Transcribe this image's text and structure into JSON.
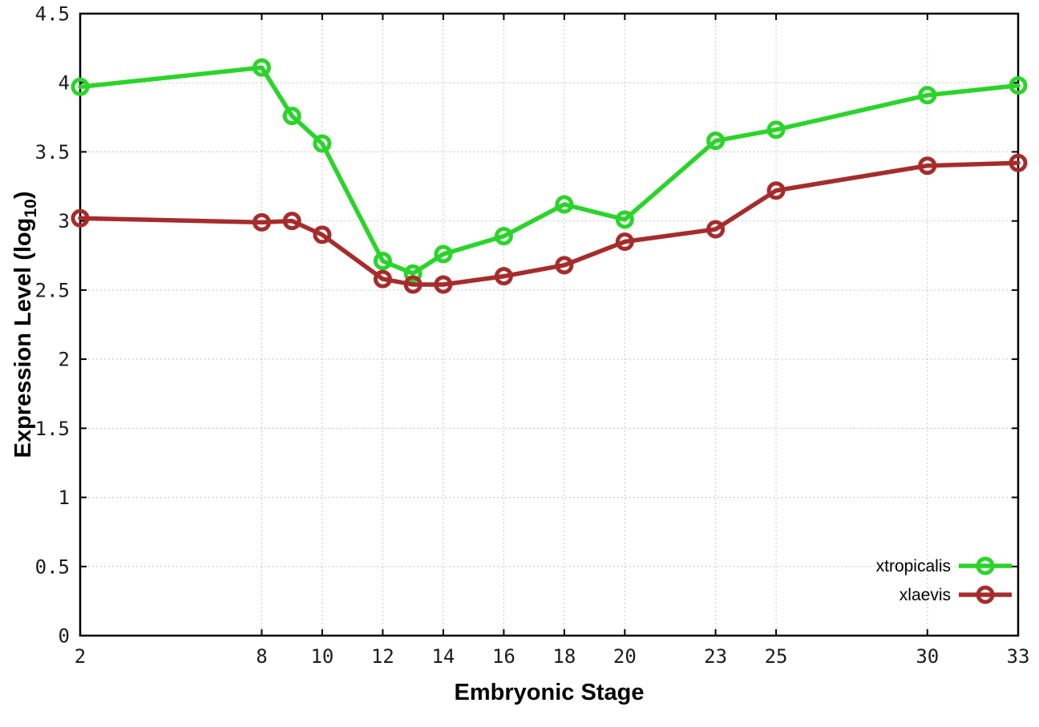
{
  "page": {
    "background": "#ffffff"
  },
  "chart_data": {
    "type": "line",
    "title": "",
    "xlabel": "Embryonic Stage",
    "ylabel": "Expression Level (log10)",
    "ylabel_parts": {
      "main": "Expression Level (log",
      "subscript": "10",
      "suffix": ")"
    },
    "xlim": [
      2,
      33
    ],
    "ylim": [
      0,
      4.5
    ],
    "xticks": [
      2,
      8,
      10,
      12,
      14,
      16,
      18,
      20,
      23,
      25,
      30,
      33
    ],
    "yticks": [
      0,
      0.5,
      1,
      1.5,
      2,
      2.5,
      3,
      3.5,
      4,
      4.5
    ],
    "grid": true,
    "legend_position": "inside-bottom-right",
    "x": [
      2,
      8,
      9,
      10,
      12,
      13,
      14,
      16,
      18,
      20,
      23,
      25,
      30,
      33
    ],
    "series": [
      {
        "name": "xtropicalis",
        "color": "#2ad42a",
        "marker": "open-circle",
        "values": [
          3.97,
          4.11,
          3.76,
          3.56,
          2.71,
          2.62,
          2.76,
          2.89,
          3.12,
          3.01,
          3.58,
          3.66,
          3.91,
          3.98
        ]
      },
      {
        "name": "xlaevis",
        "color": "#a62c2c",
        "marker": "open-circle",
        "values": [
          3.02,
          2.99,
          3.0,
          2.9,
          2.58,
          2.54,
          2.54,
          2.6,
          2.68,
          2.85,
          2.94,
          3.22,
          3.4,
          3.42
        ]
      }
    ],
    "styles": {
      "grid_color": "#b3b3b3",
      "border_color": "#000000",
      "tick_color": "#000000",
      "tick_label_color": "#1c1c1c",
      "axis_label_color": "#000000",
      "line_width": 5.5,
      "marker_radius": 9,
      "marker_stroke": 5
    }
  }
}
